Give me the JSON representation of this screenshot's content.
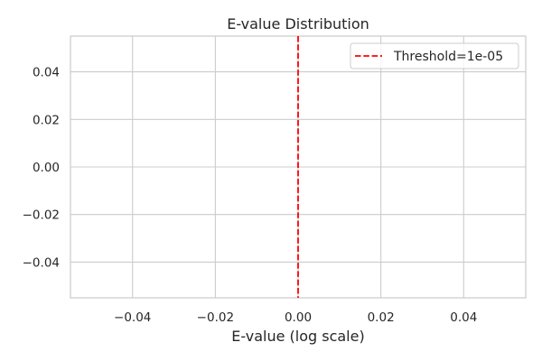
{
  "chart_data": {
    "type": "line",
    "title": "E-value Distribution",
    "xlabel": "E-value (log scale)",
    "ylabel": "",
    "xlim": [
      -0.055,
      0.055
    ],
    "ylim": [
      -0.055,
      0.055
    ],
    "xticks": [
      -0.04,
      -0.02,
      0.0,
      0.02,
      0.04
    ],
    "xtick_labels": [
      "−0.04",
      "−0.02",
      "0.00",
      "0.02",
      "0.04"
    ],
    "yticks": [
      0.04,
      0.02,
      0.0,
      -0.02,
      -0.04
    ],
    "ytick_labels": [
      "0.04",
      "0.02",
      "0.00",
      "−0.02",
      "−0.04"
    ],
    "grid": true,
    "legend_position": "top-right",
    "series": [],
    "reference_lines": [
      {
        "orientation": "vertical",
        "x": 0.0,
        "style": "dashed",
        "color": "#ff0000",
        "label": "Threshold=1e-05"
      }
    ]
  },
  "colors": {
    "background": "#ffffff",
    "grid": "#cccccc",
    "spine": "#cccccc",
    "text": "#262626",
    "threshold": "#ff0000"
  }
}
